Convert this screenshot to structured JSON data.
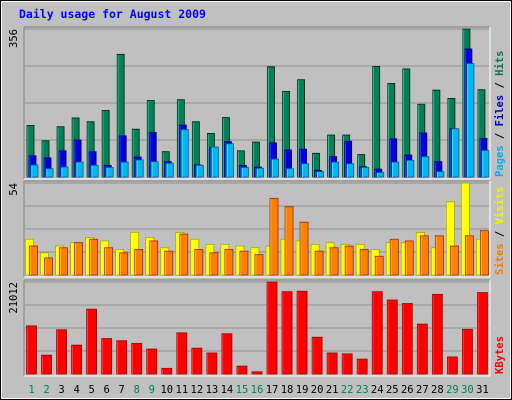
{
  "chart_data": {
    "type": "bar",
    "title": "Daily usage for August 2009",
    "categories": [
      "1",
      "2",
      "3",
      "4",
      "5",
      "6",
      "7",
      "8",
      "9",
      "10",
      "11",
      "12",
      "13",
      "14",
      "15",
      "16",
      "17",
      "18",
      "19",
      "20",
      "21",
      "22",
      "23",
      "24",
      "25",
      "26",
      "27",
      "28",
      "29",
      "30",
      "31"
    ],
    "weekend_days": [
      "1",
      "2",
      "8",
      "9",
      "15",
      "16",
      "22",
      "23",
      "29",
      "30"
    ],
    "panels": [
      {
        "id": "traffic",
        "ymax_label": "356",
        "ylim": [
          0,
          356
        ],
        "legend": [
          "Hits",
          "Files",
          "Pages"
        ],
        "series": [
          {
            "name": "Hits",
            "color": "#00805c",
            "values": [
              124,
              87,
              121,
              142,
              133,
              160,
              295,
              115,
              184,
              61,
              186,
              133,
              105,
              143,
              63,
              84,
              265,
              206,
              234,
              57,
              101,
              101,
              54,
              266,
              225,
              260,
              175,
              209,
              189,
              356,
              210
            ]
          },
          {
            "name": "Files",
            "color": "#0000d8",
            "values": [
              51,
              46,
              63,
              89,
              61,
              28,
              99,
              48,
              107,
              37,
              125,
              29,
              71,
              85,
              28,
              24,
              82,
              65,
              67,
              16,
              49,
              86,
              25,
              19,
              92,
              53,
              106,
              37,
              116,
              308,
              93
            ]
          },
          {
            "name": "Pages",
            "color": "#00b8f0",
            "values": [
              29,
              20,
              24,
              36,
              28,
              23,
              36,
              41,
              37,
              33,
              114,
              28,
              72,
              80,
              23,
              21,
              43,
              20,
              32,
              13,
              36,
              32,
              23,
              11,
              36,
              40,
              49,
              13,
              116,
              273,
              64
            ]
          }
        ]
      },
      {
        "id": "visits",
        "ymax_label": "54",
        "ylim": [
          0,
          54
        ],
        "legend": [
          "Visits",
          "Sites"
        ],
        "series": [
          {
            "name": "Visits",
            "color": "#ffff00",
            "values": [
              21,
              13,
              17,
              19,
              22,
              20,
              15,
              25,
              22,
              16,
              25,
              21,
              18,
              18,
              17,
              16,
              17,
              21,
              20,
              18,
              19,
              18,
              18,
              15,
              19,
              19,
              25,
              16,
              43,
              54,
              21
            ]
          },
          {
            "name": "Sites",
            "color": "#ff8000",
            "values": [
              17,
              10,
              16,
              19,
              21,
              16,
              13,
              15,
              20,
              14,
              24,
              15,
              13,
              15,
              14,
              12,
              45,
              40,
              31,
              14,
              16,
              17,
              15,
              11,
              21,
              20,
              23,
              23,
              17,
              23,
              26
            ]
          }
        ]
      },
      {
        "id": "kbytes",
        "ymax_label": "21012",
        "ylim": [
          0,
          21012
        ],
        "legend": [
          "KBytes"
        ],
        "series": [
          {
            "name": "KBytes",
            "color": "#ff0000",
            "values": [
              11000,
              4300,
              10100,
              6600,
              14800,
              8100,
              7600,
              7000,
              5700,
              1300,
              9400,
              5900,
              4800,
              9200,
              1800,
              500,
              21012,
              18800,
              18900,
              8400,
              4800,
              4600,
              3400,
              18800,
              16900,
              16100,
              11400,
              18200,
              3900,
              10200,
              18600
            ]
          }
        ]
      }
    ]
  }
}
